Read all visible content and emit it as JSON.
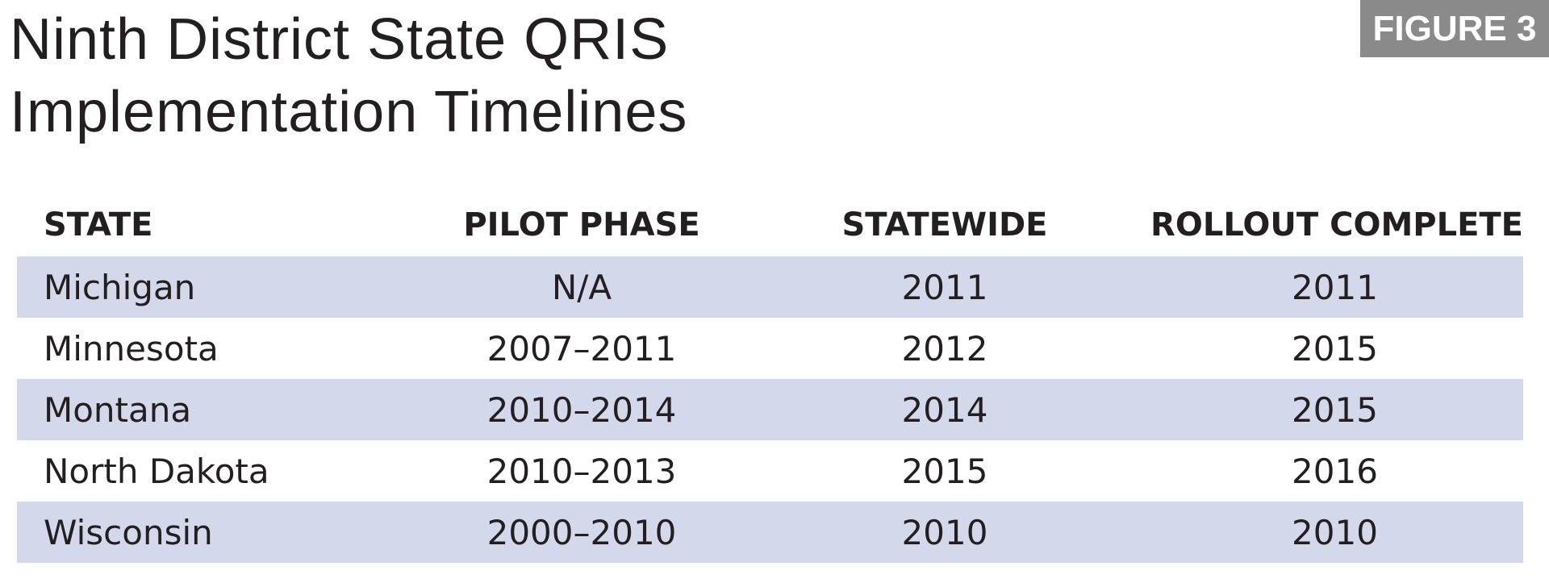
{
  "header": {
    "title": "Ninth District State QRIS Implementation Timelines",
    "figure": "FIGURE 3"
  },
  "table": {
    "columns": [
      "STATE",
      "PILOT PHASE",
      "STATEWIDE",
      "ROLLOUT COMPLETE"
    ],
    "rows": [
      [
        "Michigan",
        "N/A",
        "2011",
        "2011"
      ],
      [
        "Minnesota",
        "2007–2011",
        "2012",
        "2015"
      ],
      [
        "Montana",
        "2010–2014",
        "2014",
        "2015"
      ],
      [
        "North Dakota",
        "2010–2013",
        "2015",
        "2016"
      ],
      [
        "Wisconsin",
        "2000–2010",
        "2010",
        "2010"
      ]
    ]
  }
}
